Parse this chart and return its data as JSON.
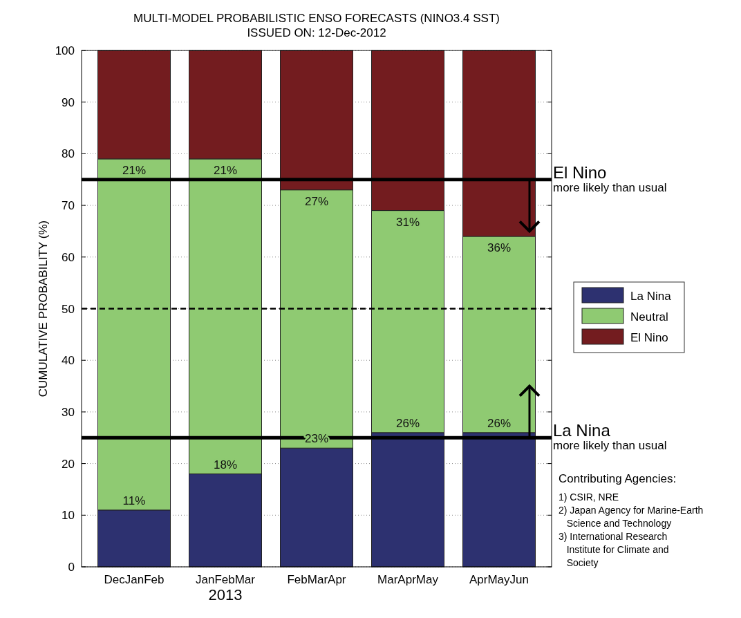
{
  "chart_data": {
    "type": "bar",
    "title": "MULTI-MODEL PROBABILISTIC ENSO FORECASTS (NINO3.4 SST)",
    "subtitle": "ISSUED ON: 12-Dec-2012",
    "ylabel": "CUMULATIVE PROBABILITY (%)",
    "categories": [
      "DecJanFeb",
      "JanFebMar",
      "FebMarApr",
      "MarAprMay",
      "AprMayJun"
    ],
    "stacked": true,
    "series": [
      {
        "name": "La Nina",
        "color": "#2d3170",
        "values": [
          11,
          18,
          23,
          26,
          26
        ],
        "value_labels": [
          "11%",
          "18%",
          "23%",
          "26%",
          "26%"
        ]
      },
      {
        "name": "Neutral",
        "color": "#8fca72",
        "values": [
          68,
          61,
          50,
          43,
          38
        ]
      },
      {
        "name": "El Nino",
        "color": "#731c1f",
        "values": [
          21,
          21,
          27,
          31,
          36
        ],
        "value_labels": [
          "21%",
          "21%",
          "27%",
          "31%",
          "36%"
        ]
      }
    ],
    "ylim": [
      0,
      100
    ],
    "yticks": [
      0,
      10,
      20,
      30,
      40,
      50,
      60,
      70,
      80,
      90,
      100
    ],
    "grid": "y",
    "legend": "right",
    "ref_lines": [
      {
        "axis": "y",
        "value": 75,
        "label": "El Nino",
        "line_style": "solid",
        "color": "#000000"
      },
      {
        "axis": "y",
        "value": 50,
        "line_style": "dashed",
        "color": "#000000"
      },
      {
        "axis": "y",
        "value": 25,
        "label": "La Nina",
        "line_style": "solid",
        "color": "#000000"
      }
    ],
    "annotations": [
      "more likely than usual",
      "more likely than usual",
      "2013",
      "Contributing Agencies:",
      "1) CSIR, NRE",
      "2) Japan Agency for Marine-Earth Science and Technology",
      "3) International Research Institute for Climate and Society"
    ]
  }
}
